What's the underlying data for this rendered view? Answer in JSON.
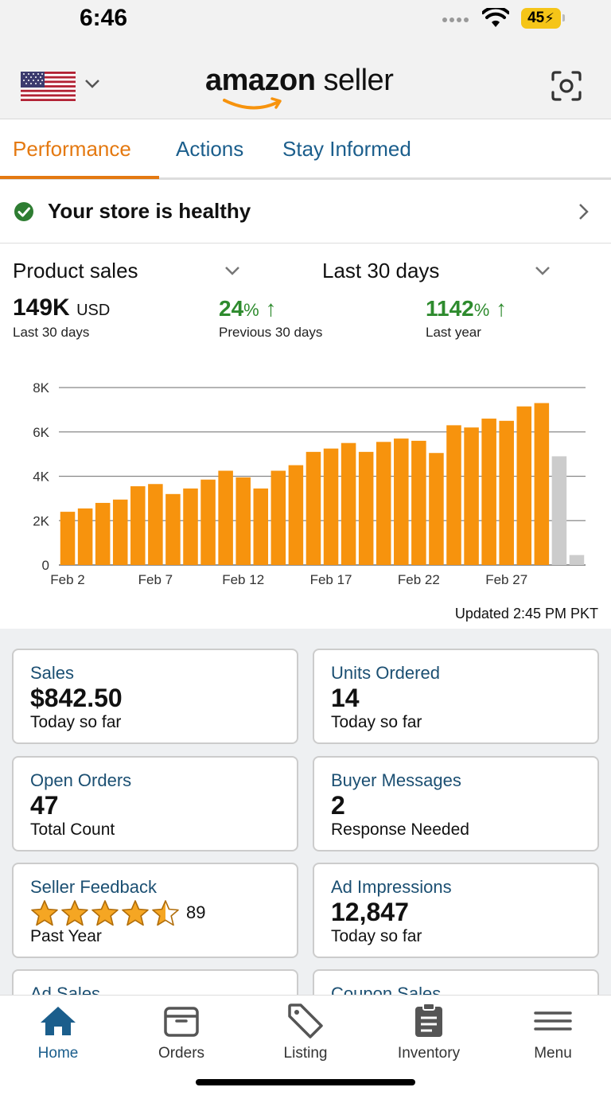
{
  "status_bar": {
    "time": "6:46",
    "battery": "45"
  },
  "header": {
    "logo_bold": "amazon",
    "logo_light": " seller",
    "region_icon": "us-flag-icon",
    "scan_icon": "scan-icon"
  },
  "tabs": [
    {
      "label": "Performance",
      "active": true
    },
    {
      "label": "Actions",
      "active": false
    },
    {
      "label": "Stay Informed",
      "active": false
    }
  ],
  "health": {
    "label": "Your store is healthy",
    "status_color": "#2e7d32"
  },
  "metrics": {
    "metric_select": "Product sales",
    "range_select": "Last 30 days",
    "total_value": "149K",
    "total_unit": "USD",
    "total_sub": "Last 30 days",
    "prev_value": "24",
    "prev_pct": "%",
    "prev_sub": "Previous 30 days",
    "year_value": "1142",
    "year_pct": "%",
    "year_sub": "Last year"
  },
  "chart_data": {
    "type": "bar",
    "y_ticks": [
      "8K",
      "6K",
      "4K",
      "2K",
      "0"
    ],
    "ylim": [
      0,
      8000
    ],
    "x_tick_labels": [
      "Feb 2",
      "Feb 7",
      "Feb 12",
      "Feb 17",
      "Feb 22",
      "Feb 27"
    ],
    "x_tick_indices": [
      0,
      5,
      10,
      15,
      20,
      25
    ],
    "values": [
      2400,
      2550,
      2800,
      2950,
      3550,
      3650,
      3200,
      3450,
      3850,
      4250,
      3950,
      3450,
      4250,
      4500,
      5100,
      5250,
      5500,
      5100,
      5550,
      5700,
      5600,
      5050,
      6300,
      6200,
      6600,
      6500,
      7150,
      7300,
      4900,
      450
    ],
    "colors": {
      "complete": "#f7930d",
      "partial": "#cccccc"
    },
    "partial_from_index": 28,
    "grid": true
  },
  "updated": "Updated 2:45 PM PKT",
  "cards": [
    {
      "title": "Sales",
      "value": "$842.50",
      "sub": "Today so far"
    },
    {
      "title": "Units Ordered",
      "value": "14",
      "sub": "Today so far"
    },
    {
      "title": "Open Orders",
      "value": "47",
      "sub": "Total Count"
    },
    {
      "title": "Buyer Messages",
      "value": "2",
      "sub": "Response Needed"
    },
    {
      "title": "Seller Feedback",
      "rating": 4.5,
      "count": "89",
      "sub": "Past Year"
    },
    {
      "title": "Ad Impressions",
      "value": "12,847",
      "sub": "Today so far"
    },
    {
      "title": "Ad Sales"
    },
    {
      "title": "Coupon Sales"
    }
  ],
  "nav": [
    {
      "label": "Home",
      "icon": "home-icon",
      "active": true
    },
    {
      "label": "Orders",
      "icon": "orders-box-icon",
      "active": false
    },
    {
      "label": "Listing",
      "icon": "tag-icon",
      "active": false
    },
    {
      "label": "Inventory",
      "icon": "clipboard-icon",
      "active": false
    },
    {
      "label": "Menu",
      "icon": "hamburger-icon",
      "active": false
    }
  ]
}
